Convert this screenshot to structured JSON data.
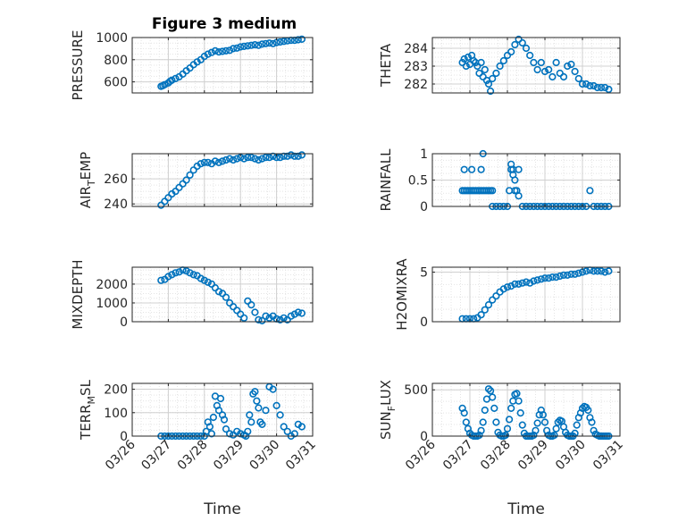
{
  "figure": {
    "title": "Figure 3 medium"
  },
  "colors": {
    "marker": "#0072BD",
    "axis": "#262626",
    "grid": "#d0d0d0",
    "minor_grid": "#e4e4e4"
  },
  "chart_data": [
    {
      "id": "pressure",
      "type": "scatter",
      "title": "Figure 3 medium",
      "ylabel": "PRESSURE",
      "xlabel": "",
      "xlim": [
        "03/26",
        "03/31"
      ],
      "ylim": [
        500,
        1000
      ],
      "yticks": [
        600,
        800,
        1000
      ],
      "yticklabels": [
        "600",
        "800",
        "1000"
      ],
      "grid": true,
      "series": [
        {
          "x": [
            26.8,
            26.85,
            26.9,
            27.0,
            27.05,
            27.1,
            27.2,
            27.3,
            27.4,
            27.5,
            27.6,
            27.7,
            27.8,
            27.9,
            28.0,
            28.1,
            28.2,
            28.3,
            28.4,
            28.5,
            28.6,
            28.7,
            28.8,
            28.9,
            29.0,
            29.1,
            29.2,
            29.3,
            29.4,
            29.5,
            29.6,
            29.7,
            29.8,
            29.9,
            30.0,
            30.1,
            30.2,
            30.3,
            30.4,
            30.5,
            30.6,
            30.7
          ],
          "y": [
            560,
            565,
            575,
            590,
            605,
            615,
            630,
            645,
            670,
            700,
            725,
            755,
            780,
            800,
            830,
            850,
            865,
            880,
            870,
            875,
            880,
            885,
            900,
            905,
            915,
            920,
            925,
            930,
            935,
            930,
            940,
            945,
            950,
            945,
            955,
            960,
            965,
            970,
            975,
            975,
            980,
            985
          ]
        }
      ]
    },
    {
      "id": "theta",
      "type": "scatter",
      "ylabel": "THETA",
      "xlabel": "",
      "xlim": [
        "03/26",
        "03/31"
      ],
      "ylim": [
        281.5,
        284.6
      ],
      "yticks": [
        282,
        283,
        284
      ],
      "yticklabels": [
        "282",
        "283",
        "284"
      ],
      "grid": true,
      "series": [
        {
          "x": [
            26.8,
            26.85,
            26.9,
            26.95,
            27.0,
            27.05,
            27.1,
            27.15,
            27.2,
            27.25,
            27.3,
            27.35,
            27.4,
            27.45,
            27.5,
            27.55,
            27.6,
            27.7,
            27.8,
            27.9,
            28.0,
            28.1,
            28.2,
            28.3,
            28.4,
            28.5,
            28.6,
            28.7,
            28.8,
            28.9,
            29.0,
            29.1,
            29.2,
            29.3,
            29.4,
            29.5,
            29.6,
            29.7,
            29.8,
            29.9,
            30.0,
            30.1,
            30.2,
            30.3,
            30.4,
            30.5,
            30.6,
            30.7
          ],
          "y": [
            283.2,
            283.4,
            283.0,
            283.5,
            283.1,
            283.6,
            283.3,
            283.2,
            283.0,
            282.6,
            283.2,
            282.4,
            282.8,
            282.2,
            282.0,
            281.6,
            282.3,
            282.6,
            283.0,
            283.3,
            283.6,
            283.8,
            284.2,
            284.5,
            284.3,
            284.0,
            283.6,
            283.2,
            282.8,
            283.2,
            282.7,
            282.8,
            282.4,
            283.2,
            282.6,
            282.4,
            283.0,
            283.1,
            282.7,
            282.3,
            282.0,
            282.0,
            281.9,
            281.9,
            281.8,
            281.8,
            281.8,
            281.7
          ]
        }
      ]
    },
    {
      "id": "air_temp",
      "type": "scatter",
      "ylabel": "AIR_TEMP",
      "xlabel": "",
      "xlim": [
        "03/26",
        "03/31"
      ],
      "ylim": [
        238,
        280
      ],
      "yticks": [
        240,
        260
      ],
      "yticklabels": [
        "240",
        "260"
      ],
      "grid": true,
      "series": [
        {
          "x": [
            26.8,
            26.9,
            27.0,
            27.1,
            27.2,
            27.3,
            27.4,
            27.5,
            27.6,
            27.7,
            27.8,
            27.9,
            28.0,
            28.1,
            28.2,
            28.3,
            28.4,
            28.5,
            28.6,
            28.7,
            28.8,
            28.9,
            29.0,
            29.1,
            29.2,
            29.3,
            29.4,
            29.5,
            29.6,
            29.7,
            29.8,
            29.9,
            30.0,
            30.1,
            30.2,
            30.3,
            30.4,
            30.5,
            30.6,
            30.7
          ],
          "y": [
            239,
            242,
            245,
            248,
            250,
            253,
            256,
            259,
            263,
            267,
            270,
            272,
            273,
            273,
            272,
            274,
            273,
            274,
            275,
            276,
            275,
            276,
            277,
            276,
            277,
            277,
            276,
            275,
            276,
            277,
            277,
            278,
            277,
            277,
            278,
            278,
            279,
            278,
            278,
            279
          ]
        }
      ]
    },
    {
      "id": "rainfall",
      "type": "scatter",
      "ylabel": "RAINFALL",
      "xlabel": "",
      "xlim": [
        "03/26",
        "03/31"
      ],
      "ylim": [
        0,
        1
      ],
      "yticks": [
        0,
        0.5,
        1
      ],
      "yticklabels": [
        "0",
        "0.5",
        "1"
      ],
      "grid": true,
      "series": [
        {
          "x": [
            26.8,
            26.85,
            26.9,
            26.95,
            27.0,
            27.05,
            27.1,
            27.15,
            27.2,
            27.25,
            27.3,
            27.35,
            27.4,
            27.45,
            27.5,
            27.55,
            27.6,
            26.85,
            27.05,
            27.3,
            27.35,
            27.6,
            27.7,
            27.8,
            27.9,
            28.0,
            28.05,
            28.1,
            28.15,
            28.2,
            28.25,
            28.3,
            28.1,
            28.15,
            28.2,
            28.3,
            28.4,
            28.5,
            28.6,
            28.7,
            28.8,
            28.9,
            29.0,
            29.1,
            29.2,
            29.3,
            29.4,
            29.5,
            29.6,
            29.7,
            29.8,
            29.9,
            30.0,
            30.1,
            30.2,
            30.3,
            30.4,
            30.5,
            30.6,
            30.7
          ],
          "y": [
            0.3,
            0.3,
            0.3,
            0.3,
            0.3,
            0.3,
            0.3,
            0.3,
            0.3,
            0.3,
            0.3,
            0.3,
            0.3,
            0.3,
            0.3,
            0.3,
            0.3,
            0.7,
            0.7,
            0.7,
            1.0,
            0,
            0,
            0,
            0,
            0,
            0.3,
            0.8,
            0.7,
            0.5,
            0.3,
            0.2,
            0.7,
            0.6,
            0.3,
            0.7,
            0,
            0,
            0,
            0,
            0,
            0,
            0,
            0,
            0,
            0,
            0,
            0,
            0,
            0,
            0,
            0,
            0,
            0,
            0.3,
            0,
            0,
            0,
            0,
            0
          ]
        }
      ]
    },
    {
      "id": "mixdepth",
      "type": "scatter",
      "ylabel": "MIXDEPTH",
      "xlabel": "",
      "xlim": [
        "03/26",
        "03/31"
      ],
      "ylim": [
        0,
        2900
      ],
      "yticks": [
        0,
        1000,
        2000
      ],
      "yticklabels": [
        "0",
        "1000",
        "2000"
      ],
      "grid": true,
      "series": [
        {
          "x": [
            26.8,
            26.9,
            27.0,
            27.1,
            27.2,
            27.3,
            27.4,
            27.5,
            27.6,
            27.7,
            27.8,
            27.9,
            28.0,
            28.1,
            28.2,
            28.3,
            28.4,
            28.5,
            28.6,
            28.7,
            28.8,
            28.9,
            29.0,
            29.1,
            29.2,
            29.3,
            29.4,
            29.5,
            29.6,
            29.7,
            29.8,
            29.9,
            30.0,
            30.1,
            30.2,
            30.3,
            30.4,
            30.5,
            30.6,
            30.7
          ],
          "y": [
            2200,
            2250,
            2400,
            2500,
            2600,
            2650,
            2750,
            2700,
            2600,
            2500,
            2450,
            2300,
            2200,
            2100,
            2000,
            1800,
            1600,
            1500,
            1300,
            1000,
            800,
            600,
            400,
            200,
            1100,
            900,
            500,
            100,
            50,
            300,
            200,
            300,
            150,
            100,
            200,
            100,
            300,
            400,
            500,
            450
          ]
        }
      ]
    },
    {
      "id": "h2omixra",
      "type": "scatter",
      "ylabel": "H2OMIXRA",
      "xlabel": "",
      "xlim": [
        "03/26",
        "03/31"
      ],
      "ylim": [
        0,
        5.5
      ],
      "yticks": [
        0,
        5
      ],
      "yticklabels": [
        "0",
        "5"
      ],
      "grid": true,
      "series": [
        {
          "x": [
            26.8,
            26.9,
            27.0,
            27.1,
            27.2,
            27.3,
            27.4,
            27.5,
            27.6,
            27.7,
            27.8,
            27.9,
            28.0,
            28.1,
            28.2,
            28.3,
            28.4,
            28.5,
            28.6,
            28.7,
            28.8,
            28.9,
            29.0,
            29.1,
            29.2,
            29.3,
            29.4,
            29.5,
            29.6,
            29.7,
            29.8,
            29.9,
            30.0,
            30.1,
            30.2,
            30.3,
            30.4,
            30.5,
            30.6,
            30.7
          ],
          "y": [
            0.3,
            0.3,
            0.3,
            0.3,
            0.4,
            0.7,
            1.2,
            1.7,
            2.2,
            2.6,
            3.0,
            3.3,
            3.5,
            3.6,
            3.8,
            3.8,
            3.9,
            4.0,
            3.9,
            4.1,
            4.2,
            4.3,
            4.4,
            4.4,
            4.5,
            4.5,
            4.6,
            4.7,
            4.7,
            4.8,
            4.8,
            4.9,
            5.0,
            5.1,
            5.2,
            5.1,
            5.1,
            5.1,
            5.0,
            5.1
          ]
        }
      ]
    },
    {
      "id": "terr_msl",
      "type": "scatter",
      "ylabel": "TERR_MSL",
      "xlabel": "Time",
      "xlim": [
        "03/26",
        "03/31"
      ],
      "ylim": [
        0,
        225
      ],
      "yticks": [
        0,
        100,
        200
      ],
      "yticklabels": [
        "0",
        "100",
        "200"
      ],
      "xticks": [
        "03/26",
        "03/27",
        "03/28",
        "03/29",
        "03/30",
        "03/31"
      ],
      "grid": true,
      "series": [
        {
          "x": [
            26.8,
            26.9,
            27.0,
            27.1,
            27.2,
            27.3,
            27.4,
            27.5,
            27.6,
            27.7,
            27.8,
            27.9,
            28.0,
            28.05,
            28.1,
            28.15,
            28.2,
            28.25,
            28.3,
            28.35,
            28.4,
            28.45,
            28.5,
            28.55,
            28.6,
            28.7,
            28.8,
            28.9,
            29.0,
            29.1,
            29.15,
            29.2,
            29.25,
            29.3,
            29.35,
            29.4,
            29.45,
            29.5,
            29.55,
            29.6,
            29.7,
            29.8,
            29.9,
            30.0,
            30.1,
            30.2,
            30.3,
            30.4,
            30.5,
            30.6,
            30.7
          ],
          "y": [
            0,
            0,
            0,
            0,
            0,
            0,
            0,
            0,
            0,
            0,
            0,
            0,
            0,
            20,
            60,
            40,
            10,
            80,
            170,
            130,
            110,
            160,
            90,
            70,
            30,
            10,
            5,
            20,
            10,
            5,
            0,
            20,
            90,
            60,
            180,
            190,
            150,
            120,
            60,
            50,
            110,
            210,
            200,
            130,
            90,
            40,
            20,
            0,
            10,
            50,
            40
          ]
        }
      ]
    },
    {
      "id": "sun_flux",
      "type": "scatter",
      "ylabel": "SUN_FLUX",
      "xlabel": "Time",
      "xlim": [
        "03/26",
        "03/31"
      ],
      "ylim": [
        0,
        570
      ],
      "yticks": [
        0,
        500
      ],
      "yticklabels": [
        "0",
        "500"
      ],
      "xticks": [
        "03/26",
        "03/27",
        "03/28",
        "03/29",
        "03/30",
        "03/31"
      ],
      "grid": true,
      "series": [
        {
          "x": [
            26.8,
            26.85,
            26.9,
            26.95,
            27.0,
            27.05,
            27.1,
            27.15,
            27.2,
            27.25,
            27.3,
            27.35,
            27.4,
            27.45,
            27.5,
            27.55,
            27.6,
            27.65,
            27.7,
            27.75,
            27.8,
            27.85,
            27.9,
            27.95,
            28.0,
            28.05,
            28.1,
            28.15,
            28.2,
            28.25,
            28.3,
            28.35,
            28.4,
            28.45,
            28.5,
            28.55,
            28.6,
            28.65,
            28.7,
            28.75,
            28.8,
            28.85,
            28.9,
            28.95,
            29.0,
            29.05,
            29.1,
            29.15,
            29.2,
            29.25,
            29.3,
            29.35,
            29.4,
            29.45,
            29.5,
            29.55,
            29.6,
            29.65,
            29.7,
            29.75,
            29.8,
            29.85,
            29.9,
            29.95,
            30.0,
            30.05,
            30.1,
            30.15,
            30.2,
            30.25,
            30.3,
            30.35,
            30.4,
            30.45,
            30.5,
            30.55,
            30.6,
            30.65,
            30.7
          ],
          "y": [
            300,
            250,
            150,
            80,
            30,
            10,
            0,
            0,
            0,
            10,
            60,
            150,
            280,
            400,
            510,
            490,
            420,
            300,
            150,
            40,
            10,
            0,
            0,
            10,
            80,
            180,
            300,
            380,
            450,
            460,
            380,
            250,
            120,
            30,
            0,
            0,
            0,
            0,
            10,
            60,
            140,
            230,
            280,
            230,
            150,
            60,
            10,
            0,
            0,
            10,
            80,
            150,
            170,
            160,
            100,
            40,
            10,
            0,
            0,
            0,
            30,
            120,
            200,
            250,
            300,
            320,
            310,
            280,
            200,
            150,
            60,
            20,
            10,
            0,
            0,
            0,
            0,
            0,
            0
          ]
        }
      ]
    }
  ]
}
